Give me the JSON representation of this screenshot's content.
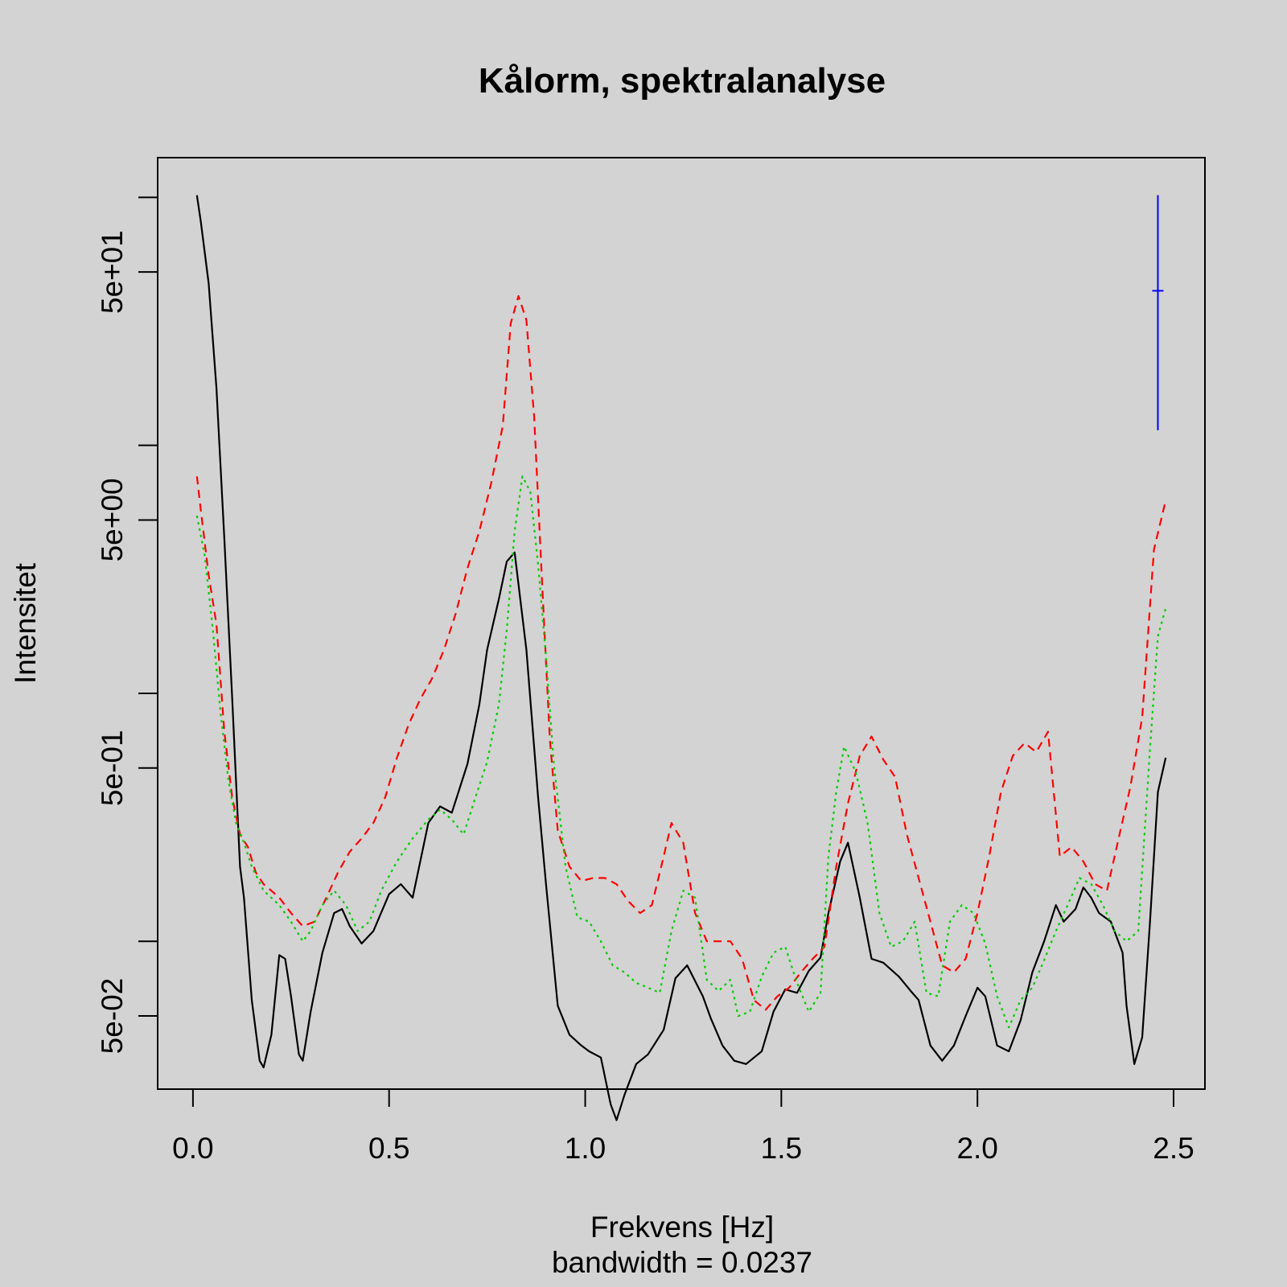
{
  "chart_data": {
    "type": "line",
    "title": "Kålorm, spektralanalyse",
    "xlabel": "Frekvens [Hz]",
    "sublabel": "bandwidth = 0.0237",
    "ylabel": "Intensitet",
    "xlim": [
      -0.09,
      2.58
    ],
    "ylim_log10": [
      -1.596,
      2.16
    ],
    "y_scale": "log",
    "x_ticks": [
      "0.0",
      "0.5",
      "1.0",
      "1.5",
      "2.0",
      "2.5"
    ],
    "x_tick_values": [
      0,
      0.5,
      1.0,
      1.5,
      2.0,
      2.5
    ],
    "y_ticks": [
      "5e-02",
      "5e-01",
      "5e+00",
      "5e+01"
    ],
    "y_tick_values": [
      0.05,
      0.5,
      5,
      50
    ],
    "grid": false,
    "colors": {
      "series1": "#000000",
      "series2": "#ff0000",
      "series3": "#00cd00",
      "ci_bar": "#0000ff"
    },
    "ci_bar": {
      "x": 2.46,
      "center": 42,
      "low": 11.5,
      "high": 102
    },
    "series": [
      {
        "style": "solid",
        "x": [
          0.01,
          0.02,
          0.04,
          0.06,
          0.08,
          0.1,
          0.12,
          0.13,
          0.15,
          0.17,
          0.18,
          0.2,
          0.22,
          0.235,
          0.25,
          0.27,
          0.28,
          0.3,
          0.33,
          0.36,
          0.38,
          0.4,
          0.43,
          0.46,
          0.5,
          0.53,
          0.56,
          0.6,
          0.63,
          0.66,
          0.7,
          0.73,
          0.75,
          0.78,
          0.8,
          0.82,
          0.85,
          0.88,
          0.9,
          0.93,
          0.96,
          0.99,
          1.01,
          1.04,
          1.065,
          1.08,
          1.1,
          1.13,
          1.16,
          1.2,
          1.23,
          1.26,
          1.3,
          1.32,
          1.35,
          1.38,
          1.41,
          1.45,
          1.48,
          1.51,
          1.54,
          1.57,
          1.6,
          1.62,
          1.65,
          1.67,
          1.7,
          1.73,
          1.76,
          1.8,
          1.83,
          1.85,
          1.88,
          1.91,
          1.94,
          1.97,
          2.0,
          2.02,
          2.05,
          2.08,
          2.11,
          2.14,
          2.17,
          2.2,
          2.22,
          2.25,
          2.27,
          2.29,
          2.31,
          2.34,
          2.37,
          2.38,
          2.4,
          2.42,
          2.44,
          2.46,
          2.48
        ],
        "y": [
          102,
          80,
          45,
          17,
          4.2,
          0.95,
          0.2,
          0.15,
          0.058,
          0.033,
          0.031,
          0.042,
          0.088,
          0.085,
          0.06,
          0.035,
          0.033,
          0.052,
          0.09,
          0.13,
          0.135,
          0.115,
          0.098,
          0.11,
          0.155,
          0.17,
          0.15,
          0.3,
          0.35,
          0.33,
          0.52,
          0.9,
          1.5,
          2.4,
          3.4,
          3.7,
          1.5,
          0.38,
          0.17,
          0.055,
          0.042,
          0.038,
          0.036,
          0.034,
          0.022,
          0.019,
          0.024,
          0.032,
          0.035,
          0.044,
          0.071,
          0.08,
          0.06,
          0.049,
          0.038,
          0.033,
          0.032,
          0.036,
          0.052,
          0.064,
          0.062,
          0.076,
          0.086,
          0.13,
          0.21,
          0.25,
          0.15,
          0.085,
          0.082,
          0.072,
          0.063,
          0.058,
          0.038,
          0.033,
          0.038,
          0.05,
          0.065,
          0.06,
          0.038,
          0.036,
          0.048,
          0.075,
          0.1,
          0.14,
          0.12,
          0.135,
          0.165,
          0.15,
          0.13,
          0.12,
          0.09,
          0.055,
          0.032,
          0.041,
          0.12,
          0.4,
          0.55
        ]
      },
      {
        "style": "dashed",
        "x": [
          0.01,
          0.02,
          0.04,
          0.06,
          0.08,
          0.1,
          0.12,
          0.14,
          0.16,
          0.18,
          0.2,
          0.22,
          0.25,
          0.28,
          0.31,
          0.34,
          0.37,
          0.4,
          0.43,
          0.46,
          0.49,
          0.52,
          0.55,
          0.58,
          0.61,
          0.64,
          0.67,
          0.7,
          0.73,
          0.76,
          0.79,
          0.81,
          0.83,
          0.85,
          0.87,
          0.89,
          0.91,
          0.93,
          0.96,
          0.99,
          1.02,
          1.05,
          1.08,
          1.11,
          1.14,
          1.17,
          1.2,
          1.22,
          1.25,
          1.28,
          1.31,
          1.34,
          1.37,
          1.4,
          1.43,
          1.46,
          1.49,
          1.52,
          1.55,
          1.58,
          1.61,
          1.64,
          1.67,
          1.7,
          1.73,
          1.76,
          1.79,
          1.82,
          1.85,
          1.88,
          1.91,
          1.94,
          1.97,
          2.0,
          2.03,
          2.06,
          2.09,
          2.12,
          2.15,
          2.18,
          2.21,
          2.24,
          2.27,
          2.3,
          2.33,
          2.36,
          2.39,
          2.42,
          2.45,
          2.48
        ],
        "y": [
          7.5,
          5.5,
          3.0,
          1.9,
          0.7,
          0.38,
          0.27,
          0.24,
          0.19,
          0.17,
          0.16,
          0.15,
          0.13,
          0.115,
          0.12,
          0.15,
          0.19,
          0.23,
          0.26,
          0.3,
          0.38,
          0.55,
          0.75,
          0.95,
          1.15,
          1.5,
          2.1,
          3.2,
          4.5,
          7,
          12,
          31,
          40,
          32,
          13,
          2.8,
          0.65,
          0.28,
          0.2,
          0.175,
          0.18,
          0.18,
          0.17,
          0.145,
          0.13,
          0.14,
          0.22,
          0.3,
          0.25,
          0.13,
          0.1,
          0.1,
          0.1,
          0.085,
          0.058,
          0.053,
          0.06,
          0.065,
          0.075,
          0.085,
          0.095,
          0.2,
          0.36,
          0.56,
          0.67,
          0.54,
          0.46,
          0.27,
          0.18,
          0.12,
          0.08,
          0.075,
          0.085,
          0.13,
          0.22,
          0.4,
          0.56,
          0.63,
          0.58,
          0.7,
          0.22,
          0.24,
          0.21,
          0.17,
          0.16,
          0.26,
          0.42,
          0.8,
          3.8,
          6.0
        ]
      },
      {
        "style": "dotted",
        "x": [
          0.01,
          0.03,
          0.05,
          0.07,
          0.09,
          0.11,
          0.13,
          0.15,
          0.18,
          0.22,
          0.25,
          0.28,
          0.3,
          0.33,
          0.36,
          0.39,
          0.42,
          0.45,
          0.48,
          0.52,
          0.56,
          0.6,
          0.63,
          0.66,
          0.69,
          0.72,
          0.75,
          0.78,
          0.8,
          0.82,
          0.84,
          0.86,
          0.88,
          0.9,
          0.92,
          0.95,
          0.98,
          1.01,
          1.04,
          1.07,
          1.1,
          1.13,
          1.16,
          1.19,
          1.22,
          1.25,
          1.28,
          1.31,
          1.34,
          1.37,
          1.39,
          1.42,
          1.45,
          1.48,
          1.51,
          1.54,
          1.57,
          1.6,
          1.62,
          1.64,
          1.66,
          1.69,
          1.72,
          1.75,
          1.78,
          1.81,
          1.84,
          1.87,
          1.9,
          1.93,
          1.96,
          1.99,
          2.02,
          2.05,
          2.08,
          2.11,
          2.14,
          2.17,
          2.2,
          2.23,
          2.26,
          2.29,
          2.32,
          2.35,
          2.38,
          2.41,
          2.44,
          2.46,
          2.48
        ],
        "y": [
          5.2,
          3.6,
          1.85,
          0.85,
          0.45,
          0.3,
          0.25,
          0.2,
          0.16,
          0.14,
          0.12,
          0.1,
          0.11,
          0.14,
          0.16,
          0.14,
          0.11,
          0.12,
          0.16,
          0.21,
          0.26,
          0.31,
          0.34,
          0.31,
          0.27,
          0.38,
          0.53,
          0.9,
          1.8,
          4.5,
          7.5,
          6.5,
          3.3,
          1.4,
          0.52,
          0.2,
          0.125,
          0.12,
          0.1,
          0.08,
          0.075,
          0.068,
          0.065,
          0.062,
          0.11,
          0.16,
          0.15,
          0.07,
          0.063,
          0.07,
          0.05,
          0.052,
          0.072,
          0.09,
          0.095,
          0.068,
          0.052,
          0.062,
          0.22,
          0.4,
          0.61,
          0.48,
          0.3,
          0.13,
          0.095,
          0.1,
          0.12,
          0.062,
          0.06,
          0.12,
          0.14,
          0.13,
          0.098,
          0.06,
          0.045,
          0.058,
          0.065,
          0.084,
          0.11,
          0.14,
          0.18,
          0.17,
          0.14,
          0.11,
          0.1,
          0.11,
          0.6,
          1.7,
          2.2
        ]
      }
    ]
  }
}
